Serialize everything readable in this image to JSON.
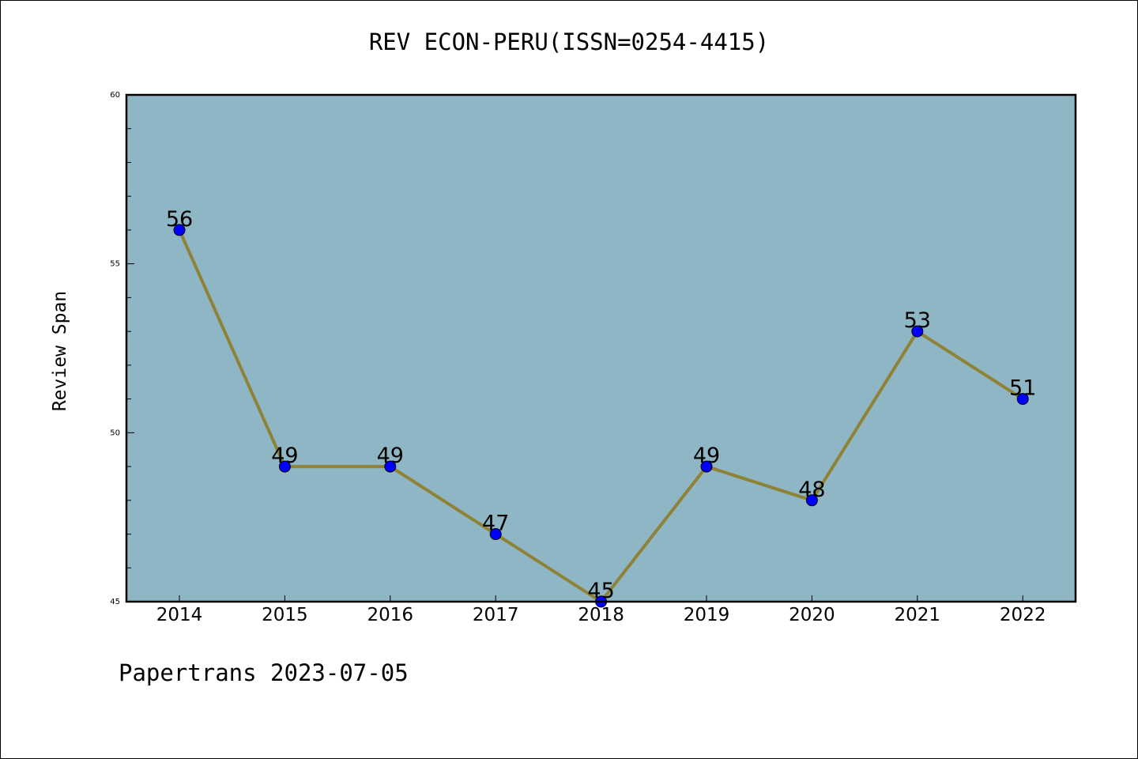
{
  "chart_data": {
    "type": "line",
    "title": "REV ECON-PERU(ISSN=0254-4415)",
    "xlabel": "",
    "ylabel": "Review Span",
    "categories": [
      "2014",
      "2015",
      "2016",
      "2017",
      "2018",
      "2019",
      "2020",
      "2021",
      "2022"
    ],
    "series": [
      {
        "values": [
          56,
          49,
          49,
          47,
          45,
          49,
          48,
          53,
          51
        ]
      }
    ],
    "ylim": [
      45,
      60
    ],
    "yticks": [
      45,
      50,
      55,
      60
    ],
    "grid": false,
    "legend": "none",
    "colors": {
      "background": "#8fb6c4",
      "line": "#8e8236",
      "marker": "#0000ff"
    }
  },
  "footer": "Papertrans 2023-07-05"
}
